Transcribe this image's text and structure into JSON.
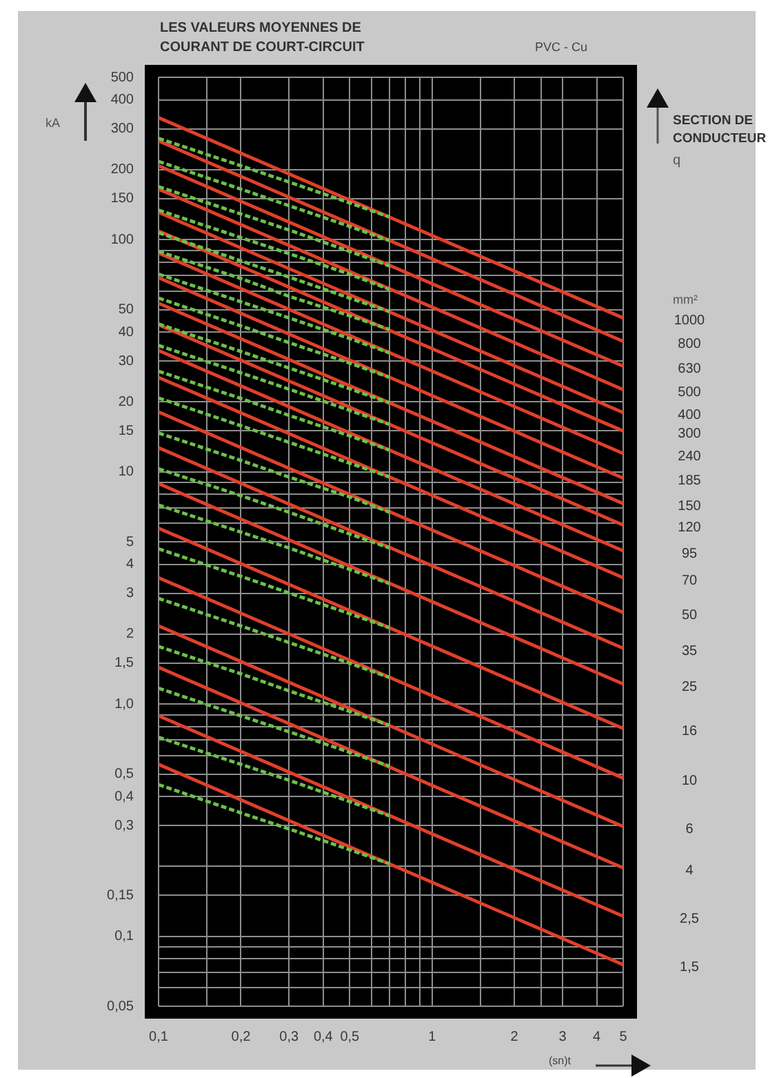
{
  "chart_data": {
    "type": "line",
    "title": "LES VALEURS MOYENNES DE COURANT DE COURT-CIRCUIT",
    "xlabel": "(sn)t",
    "ylabel": "kA",
    "annotations": [
      "PVC - Cu",
      "SECTION DE CONDUCTEUR",
      "q",
      "mm²"
    ],
    "log": "xy",
    "grid": true,
    "marker": "none",
    "xlim": [
      0.1,
      5
    ],
    "ylim": [
      0.05,
      500
    ],
    "xticks": [
      {
        "value": 0.1,
        "label": "0,1"
      },
      {
        "value": 0.15,
        "label": null
      },
      {
        "value": 0.2,
        "label": "0,2"
      },
      {
        "value": 0.3,
        "label": "0,3"
      },
      {
        "value": 0.4,
        "label": "0,4"
      },
      {
        "value": 0.5,
        "label": "0,5"
      },
      {
        "value": 0.6,
        "label": null
      },
      {
        "value": 0.7,
        "label": null
      },
      {
        "value": 0.8,
        "label": null
      },
      {
        "value": 0.9,
        "label": null
      },
      1,
      {
        "value": 1.5,
        "label": null
      },
      2,
      {
        "value": 2.5,
        "label": null
      },
      3,
      4,
      5
    ],
    "yticks": [
      {
        "value": 0.05,
        "label": "0,05"
      },
      {
        "value": 0.06,
        "label": null
      },
      {
        "value": 0.07,
        "label": null
      },
      {
        "value": 0.08,
        "label": null
      },
      {
        "value": 0.09,
        "label": null
      },
      {
        "value": 0.1,
        "label": "0,1"
      },
      {
        "value": 0.15,
        "label": "0,15"
      },
      {
        "value": 0.2,
        "label": null
      },
      {
        "value": 0.3,
        "label": "0,3"
      },
      {
        "value": 0.4,
        "label": "0,4"
      },
      {
        "value": 0.5,
        "label": "0,5"
      },
      {
        "value": 0.6,
        "label": null
      },
      {
        "value": 0.7,
        "label": null
      },
      {
        "value": 0.8,
        "label": null
      },
      {
        "value": 0.9,
        "label": null
      },
      {
        "value": 1,
        "label": "1,0"
      },
      {
        "value": 1.5,
        "label": "1,5"
      },
      2,
      3,
      4,
      5,
      {
        "value": 6,
        "label": null
      },
      {
        "value": 7,
        "label": null
      },
      {
        "value": 8,
        "label": null
      },
      {
        "value": 9,
        "label": null
      },
      10,
      15,
      20,
      30,
      40,
      50,
      {
        "value": 60,
        "label": null
      },
      {
        "value": 70,
        "label": null
      },
      {
        "value": 80,
        "label": null
      },
      {
        "value": 90,
        "label": null
      },
      100,
      150,
      200,
      300,
      400,
      500
    ],
    "series": [
      {
        "name": "1000",
        "color": "#e0402a",
        "line_style": "solid",
        "x": [
          0.1,
          5
        ],
        "values": [
          335,
          46
        ]
      },
      {
        "color": "#6cc04a",
        "line_style": "dashed",
        "x": [
          0.1,
          0.2,
          0.3,
          0.5,
          0.7
        ],
        "values": [
          273,
          208,
          177,
          144,
          125
        ]
      },
      {
        "name": "800",
        "color": "#e0402a",
        "line_style": "solid",
        "x": [
          0.1,
          5
        ],
        "values": [
          266,
          36.5
        ]
      },
      {
        "color": "#6cc04a",
        "line_style": "dashed",
        "x": [
          0.1,
          0.2,
          0.3,
          0.5,
          0.7
        ],
        "values": [
          217,
          165,
          140,
          114,
          99
        ]
      },
      {
        "name": "630",
        "color": "#e0402a",
        "line_style": "solid",
        "x": [
          0.1,
          5
        ],
        "values": [
          208,
          28.5
        ]
      },
      {
        "color": "#6cc04a",
        "line_style": "dashed",
        "x": [
          0.1,
          0.2,
          0.3,
          0.5,
          0.7
        ],
        "values": [
          169,
          129,
          110,
          89,
          77
        ]
      },
      {
        "name": "500",
        "color": "#e0402a",
        "line_style": "solid",
        "x": [
          0.1,
          5
        ],
        "values": [
          165,
          22.6
        ]
      },
      {
        "color": "#6cc04a",
        "line_style": "dashed",
        "x": [
          0.1,
          0.2,
          0.3,
          0.5,
          0.7
        ],
        "values": [
          134,
          102,
          87,
          71,
          61
        ]
      },
      {
        "name": "400",
        "color": "#e0402a",
        "line_style": "solid",
        "x": [
          0.1,
          5
        ],
        "values": [
          131,
          18
        ]
      },
      {
        "color": "#6cc04a",
        "line_style": "dashed",
        "x": [
          0.1,
          0.2,
          0.3,
          0.5,
          0.7
        ],
        "values": [
          107,
          81,
          69,
          56,
          49
        ]
      },
      {
        "name": "300",
        "color": "#e0402a",
        "line_style": "solid",
        "x": [
          0.1,
          5
        ],
        "values": [
          109,
          15
        ]
      },
      {
        "color": "#6cc04a",
        "line_style": "dashed",
        "x": [
          0.1,
          0.2,
          0.3,
          0.5,
          0.7
        ],
        "values": [
          89,
          68,
          57,
          47,
          41
        ]
      },
      {
        "name": "240",
        "color": "#e0402a",
        "line_style": "solid",
        "x": [
          0.1,
          5
        ],
        "values": [
          87.5,
          12
        ]
      },
      {
        "color": "#6cc04a",
        "line_style": "dashed",
        "x": [
          0.1,
          0.2,
          0.3,
          0.5,
          0.7
        ],
        "values": [
          71,
          54,
          46,
          37.5,
          32.5
        ]
      },
      {
        "name": "185",
        "color": "#e0402a",
        "line_style": "solid",
        "x": [
          0.1,
          5
        ],
        "values": [
          68.5,
          9.4
        ]
      },
      {
        "color": "#6cc04a",
        "line_style": "dashed",
        "x": [
          0.1,
          0.2,
          0.3,
          0.5,
          0.7
        ],
        "values": [
          56,
          42.5,
          36,
          29.4,
          25.5
        ]
      },
      {
        "name": "150",
        "color": "#e0402a",
        "line_style": "solid",
        "x": [
          0.1,
          5
        ],
        "values": [
          53.2,
          7.3
        ]
      },
      {
        "color": "#6cc04a",
        "line_style": "dashed",
        "x": [
          0.1,
          0.2,
          0.3,
          0.5,
          0.7
        ],
        "values": [
          43.3,
          33,
          28,
          22.8,
          19.8
        ]
      },
      {
        "name": "120",
        "color": "#e0402a",
        "line_style": "solid",
        "x": [
          0.1,
          5
        ],
        "values": [
          43,
          5.9
        ]
      },
      {
        "color": "#6cc04a",
        "line_style": "dashed",
        "x": [
          0.1,
          0.2,
          0.3,
          0.5,
          0.7
        ],
        "values": [
          35,
          26.7,
          22.7,
          18.4,
          16
        ]
      },
      {
        "name": "95",
        "color": "#e0402a",
        "line_style": "solid",
        "x": [
          0.1,
          5
        ],
        "values": [
          33.3,
          4.57
        ]
      },
      {
        "color": "#6cc04a",
        "line_style": "dashed",
        "x": [
          0.1,
          0.2,
          0.3,
          0.5,
          0.7
        ],
        "values": [
          27.1,
          20.7,
          17.5,
          14.3,
          12.4
        ]
      },
      {
        "name": "70",
        "color": "#e0402a",
        "line_style": "solid",
        "x": [
          0.1,
          5
        ],
        "values": [
          25.5,
          3.5
        ]
      },
      {
        "color": "#6cc04a",
        "line_style": "dashed",
        "x": [
          0.1,
          0.2,
          0.3,
          0.5,
          0.7
        ],
        "values": [
          20.8,
          15.8,
          13.4,
          10.9,
          9.5
        ]
      },
      {
        "name": "50",
        "color": "#e0402a",
        "line_style": "solid",
        "x": [
          0.1,
          5
        ],
        "values": [
          18.1,
          2.48
        ]
      },
      {
        "color": "#6cc04a",
        "line_style": "dashed",
        "x": [
          0.1,
          0.2,
          0.3,
          0.5,
          0.7
        ],
        "values": [
          14.7,
          11.2,
          9.5,
          7.8,
          6.7
        ]
      },
      {
        "name": "35",
        "color": "#e0402a",
        "line_style": "solid",
        "x": [
          0.1,
          5
        ],
        "values": [
          12.7,
          1.74
        ]
      },
      {
        "color": "#6cc04a",
        "line_style": "dashed",
        "x": [
          0.1,
          0.2,
          0.3,
          0.5,
          0.7
        ],
        "values": [
          10.3,
          7.9,
          6.7,
          5.4,
          4.7
        ]
      },
      {
        "name": "25",
        "color": "#e0402a",
        "line_style": "solid",
        "x": [
          0.1,
          5
        ],
        "values": [
          8.9,
          1.22
        ]
      },
      {
        "color": "#6cc04a",
        "line_style": "dashed",
        "x": [
          0.1,
          0.2,
          0.3,
          0.5,
          0.7
        ],
        "values": [
          7.2,
          5.5,
          4.7,
          3.8,
          3.3
        ]
      },
      {
        "name": "16",
        "color": "#e0402a",
        "line_style": "solid",
        "x": [
          0.1,
          5
        ],
        "values": [
          5.72,
          0.785
        ]
      },
      {
        "color": "#6cc04a",
        "line_style": "dashed",
        "x": [
          0.1,
          0.2,
          0.3,
          0.5,
          0.7
        ],
        "values": [
          4.66,
          3.55,
          3.01,
          2.45,
          2.13
        ]
      },
      {
        "name": "10",
        "color": "#e0402a",
        "line_style": "solid",
        "x": [
          0.1,
          5
        ],
        "values": [
          3.5,
          0.48
        ]
      },
      {
        "color": "#6cc04a",
        "line_style": "dashed",
        "x": [
          0.1,
          0.2,
          0.3,
          0.5,
          0.7
        ],
        "values": [
          2.85,
          2.17,
          1.84,
          1.5,
          1.3
        ]
      },
      {
        "name": "6",
        "color": "#e0402a",
        "line_style": "solid",
        "x": [
          0.1,
          5
        ],
        "values": [
          2.17,
          0.297
        ]
      },
      {
        "color": "#6cc04a",
        "line_style": "dashed",
        "x": [
          0.1,
          0.2,
          0.3,
          0.5,
          0.7
        ],
        "values": [
          1.77,
          1.35,
          1.14,
          0.93,
          0.81
        ]
      },
      {
        "name": "4",
        "color": "#e0402a",
        "line_style": "solid",
        "x": [
          0.1,
          5
        ],
        "values": [
          1.44,
          0.197
        ]
      },
      {
        "color": "#6cc04a",
        "line_style": "dashed",
        "x": [
          0.1,
          0.2,
          0.3,
          0.5,
          0.7
        ],
        "values": [
          1.17,
          0.89,
          0.76,
          0.62,
          0.54
        ]
      },
      {
        "name": "2,5",
        "color": "#e0402a",
        "line_style": "solid",
        "x": [
          0.1,
          5
        ],
        "values": [
          0.89,
          0.122
        ]
      },
      {
        "color": "#6cc04a",
        "line_style": "dashed",
        "x": [
          0.1,
          0.2,
          0.3,
          0.5,
          0.7
        ],
        "values": [
          0.72,
          0.55,
          0.47,
          0.38,
          0.33
        ]
      },
      {
        "name": "1,5",
        "color": "#e0402a",
        "line_style": "solid",
        "x": [
          0.1,
          5
        ],
        "values": [
          0.55,
          0.0755
        ]
      },
      {
        "color": "#6cc04a",
        "line_style": "dashed",
        "x": [
          0.1,
          0.2,
          0.3,
          0.5,
          0.7
        ],
        "values": [
          0.45,
          0.34,
          0.29,
          0.236,
          0.205
        ]
      }
    ]
  }
}
